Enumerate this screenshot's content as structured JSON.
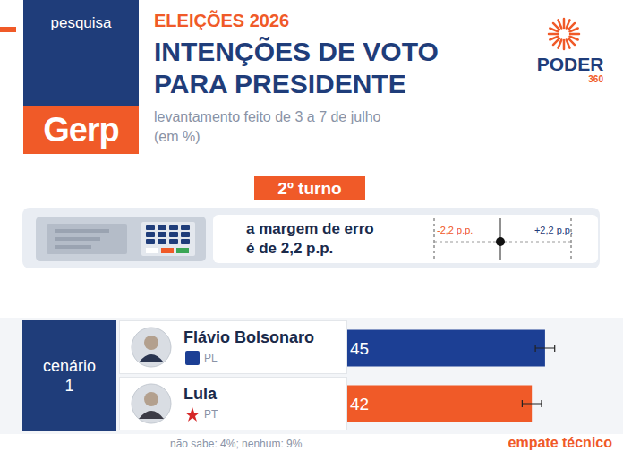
{
  "header": {
    "tag": "pesquisa",
    "pollster": "Gerp",
    "kicker": "ELEIÇÕES 2026",
    "title_lines": [
      "INTENÇÕES DE VOTO",
      "PARA PRESIDENTE"
    ],
    "subtitle_lines": [
      "levantamento feito de 3 a 7 de julho",
      "(em %)"
    ],
    "logo": "PODER",
    "logo_sub": "360"
  },
  "round": "2º turno",
  "margin_of_error": {
    "text_lines": [
      "a margem de erro",
      "é de 2,2 p.p."
    ],
    "minus_label": "-2,2 p.p.",
    "plus_label": "+2,2 p.p."
  },
  "scenario": {
    "label": "cenário",
    "number": "1",
    "parties": [
      "PL",
      "PT"
    ]
  },
  "chart_data": {
    "type": "bar",
    "orientation": "horizontal",
    "categories": [
      "Flávio Bolsonaro",
      "Lula"
    ],
    "values": [
      45,
      42
    ],
    "colors": [
      "#1c3f94",
      "#f05a28"
    ],
    "error": [
      2.2,
      2.2
    ],
    "xlim": [
      0,
      55
    ],
    "data_labels": true,
    "tick_labels": false,
    "grid": false
  },
  "footer": {
    "note": "não sabe: 4%; nenhum: 9%",
    "verdict": "empate técnico"
  }
}
